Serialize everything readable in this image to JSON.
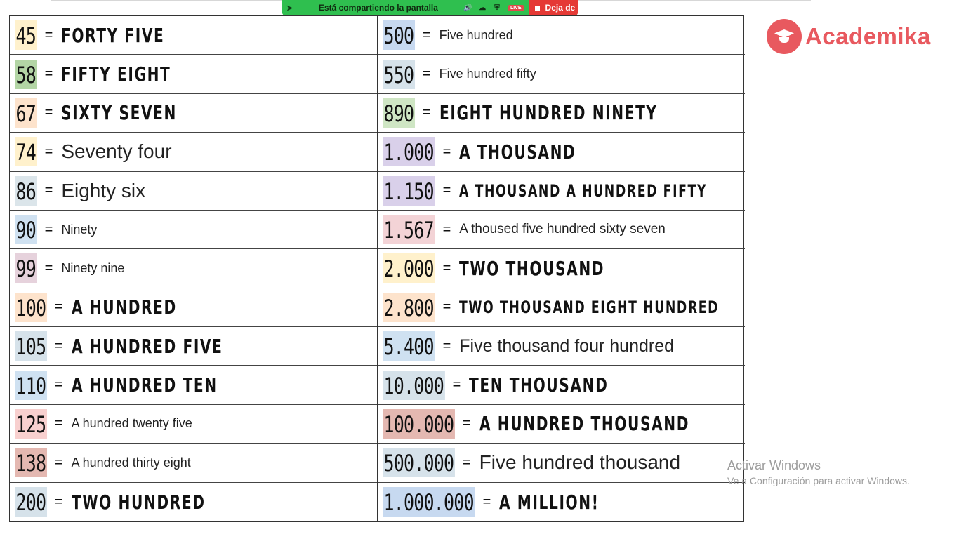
{
  "share_bar": {
    "status_text": "Está compartiendo la pantalla",
    "live_badge": "LIVE",
    "stop_label": "Deja de"
  },
  "logo": {
    "brand": "Academika",
    "color": "#e8595f"
  },
  "table": {
    "left": [
      {
        "number": "45",
        "text": "FORTY FIVE",
        "style": "hand",
        "highlight": "#fff1cc"
      },
      {
        "number": "58",
        "text": "FIFTY EIGHT",
        "style": "hand",
        "highlight": "#b3d5a5"
      },
      {
        "number": "67",
        "text": "SIXTY SEVEN",
        "style": "hand",
        "highlight": "#fde3cc"
      },
      {
        "number": "74",
        "text": "Seventy four",
        "style": "plain",
        "size": 28,
        "highlight": "#fff1cc"
      },
      {
        "number": "86",
        "text": "Eighty six",
        "style": "plain",
        "size": 28,
        "highlight": "#dbe5ea"
      },
      {
        "number": "90",
        "text": "Ninety",
        "style": "plain",
        "size": 18,
        "highlight": "#cfe1f1"
      },
      {
        "number": "99",
        "text": "Ninety nine",
        "style": "plain",
        "size": 18,
        "highlight": "#e6d2dc"
      },
      {
        "number": "100",
        "text": "A HUNDRED",
        "style": "hand",
        "highlight": "#fde3cc"
      },
      {
        "number": "105",
        "text": "A HUNDRED FIVE",
        "style": "hand",
        "highlight": "#d6e2ea"
      },
      {
        "number": "110",
        "text": "A HUNDRED TEN",
        "style": "hand",
        "highlight": "#cfe1f1"
      },
      {
        "number": "125",
        "text": "A hundred twenty five",
        "style": "plain",
        "size": 18,
        "highlight": "#f8d0cf"
      },
      {
        "number": "138",
        "text": "A hundred thirty eight",
        "style": "plain",
        "size": 18,
        "highlight": "#e4b8b1"
      },
      {
        "number": "200",
        "text": "TWO HUNDRED",
        "style": "hand",
        "highlight": "#d6e2ea"
      }
    ],
    "right": [
      {
        "number": "500",
        "text": "Five hundred",
        "style": "plain",
        "size": 18,
        "highlight": "#c7d9f0"
      },
      {
        "number": "550",
        "text": "Five hundred fifty",
        "style": "plain",
        "size": 18,
        "highlight": "#d6e2ea"
      },
      {
        "number": "890",
        "text": "EIGHT HUNDRED NINETY",
        "style": "hand",
        "highlight": "#cfe6c4"
      },
      {
        "number": "1.000",
        "text": "A THOUSAND",
        "style": "hand",
        "highlight": "#d9d0ea"
      },
      {
        "number": "1.150",
        "text": "A THOUSAND A HUNDRED FIFTY",
        "style": "hand",
        "size": 24,
        "highlight": "#d9d0ea"
      },
      {
        "number": "1.567",
        "text": "A thoused five hundred sixty seven",
        "style": "plain",
        "size": 19,
        "highlight": "#f3d3d6"
      },
      {
        "number": "2.000",
        "text": "TWO THOUSAND",
        "style": "hand",
        "highlight": "#fff1cc"
      },
      {
        "number": "2.800",
        "text": "TWO THOUSAND EIGHT HUNDRED",
        "style": "hand",
        "size": 24,
        "highlight": "#fde3cc"
      },
      {
        "number": "5.400",
        "text": "Five thousand four hundred",
        "style": "plain",
        "size": 25,
        "highlight": "#cfe1f1"
      },
      {
        "number": "10.000",
        "text": "TEN THOUSAND",
        "style": "hand",
        "highlight": "#d6e2ea"
      },
      {
        "number": "100.000",
        "text": "A HUNDRED THOUSAND",
        "style": "hand",
        "highlight": "#e4b8b1"
      },
      {
        "number": "500.000",
        "text": "Five hundred thousand",
        "style": "plain",
        "size": 28,
        "highlight": "#d6e2ea"
      },
      {
        "number": "1.000.000",
        "text": "A MILLION!",
        "style": "hand",
        "highlight": "#c7d9f0"
      }
    ]
  },
  "watermark": {
    "line1": "Activar Windows",
    "line2": "Ve a Configuración para activar Windows."
  }
}
